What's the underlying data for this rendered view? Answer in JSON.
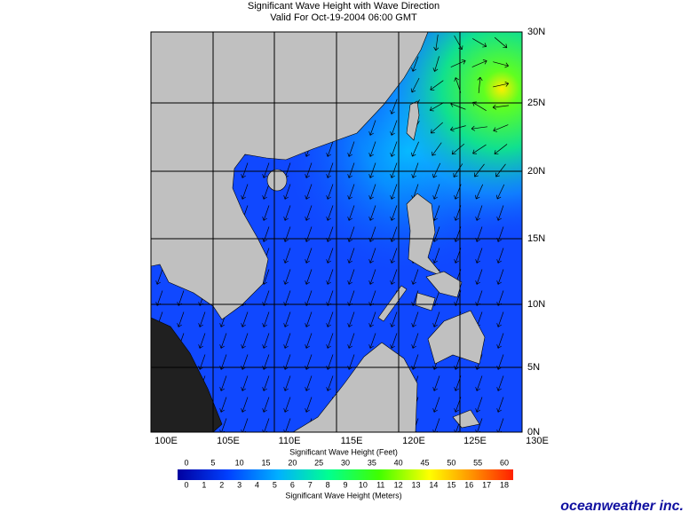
{
  "header": {
    "title": "Significant Wave Height with Wave Direction",
    "subtitle": "Valid For Oct-19-2004 06:00 GMT"
  },
  "map": {
    "lat_labels": [
      "30N",
      "25N",
      "20N",
      "15N",
      "10N",
      "5N",
      "0N"
    ],
    "lon_labels": [
      "100E",
      "105E",
      "110E",
      "115E",
      "120E",
      "125E",
      "130E"
    ]
  },
  "legend": {
    "feet_title": "Significant Wave Height (Feet)",
    "feet_labels": [
      "0",
      "5",
      "10",
      "15",
      "20",
      "25",
      "30",
      "35",
      "40",
      "45",
      "50",
      "55",
      "60"
    ],
    "meters_title": "Significant Wave Height (Meters)",
    "meters_labels": [
      "0",
      "1",
      "2",
      "3",
      "4",
      "5",
      "6",
      "7",
      "8",
      "9",
      "10",
      "11",
      "12",
      "13",
      "14",
      "15",
      "16",
      "17",
      "18"
    ]
  },
  "footer": {
    "brand": "oceanweather inc."
  }
}
